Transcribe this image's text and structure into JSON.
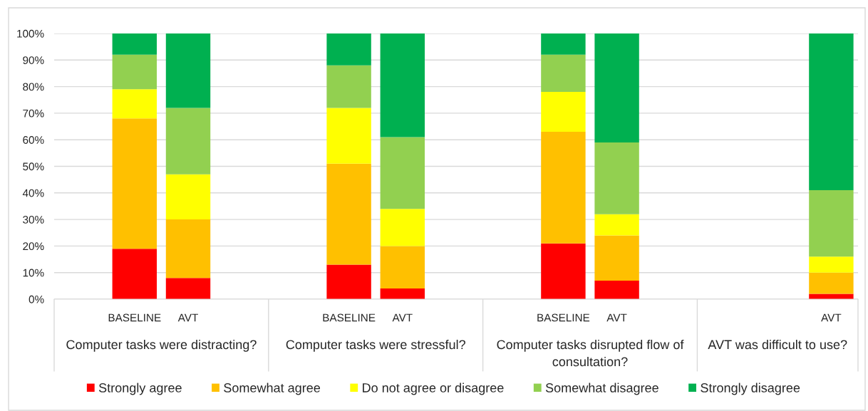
{
  "chart_data": {
    "type": "bar",
    "stacked": true,
    "categories": [
      null,
      "BASELINE",
      "AVT",
      null,
      null,
      "BASELINE",
      "AVT",
      null,
      null,
      "BASELINE",
      "AVT",
      null,
      null,
      null,
      "AVT"
    ],
    "series": [
      {
        "name": "Strongly agree",
        "color": "#ff0000",
        "values": [
          null,
          19,
          8,
          null,
          null,
          13,
          4,
          null,
          null,
          21,
          7,
          null,
          null,
          null,
          2
        ]
      },
      {
        "name": "Somewhat agree",
        "color": "#ffc000",
        "values": [
          null,
          49,
          22,
          null,
          null,
          38,
          16,
          null,
          null,
          42,
          17,
          null,
          null,
          null,
          8
        ]
      },
      {
        "name": "Do not agree or disagree",
        "color": "#ffff00",
        "values": [
          null,
          11,
          17,
          null,
          null,
          21,
          14,
          null,
          null,
          15,
          8,
          null,
          null,
          null,
          6
        ]
      },
      {
        "name": "Somewhat disagree",
        "color": "#92d050",
        "values": [
          null,
          13,
          25,
          null,
          null,
          16,
          27,
          null,
          null,
          14,
          27,
          null,
          null,
          null,
          25
        ]
      },
      {
        "name": "Strongly disagree",
        "color": "#00b050",
        "values": [
          null,
          8,
          28,
          null,
          null,
          12,
          39,
          null,
          null,
          8,
          41,
          null,
          null,
          null,
          59
        ]
      }
    ],
    "ylim": [
      0,
      100
    ],
    "yticks": [
      {
        "value": 0,
        "label": "0%"
      },
      {
        "value": 10,
        "label": "10%"
      },
      {
        "value": 20,
        "label": "20%"
      },
      {
        "value": 30,
        "label": "30%"
      },
      {
        "value": 40,
        "label": "40%"
      },
      {
        "value": 50,
        "label": "50%"
      },
      {
        "value": 60,
        "label": "60%"
      },
      {
        "value": 70,
        "label": "70%"
      },
      {
        "value": 80,
        "label": "80%"
      },
      {
        "value": 90,
        "label": "90%"
      },
      {
        "value": 100,
        "label": "100%"
      }
    ],
    "grid": "y",
    "legend": "bottom",
    "annotations": [
      "Computer tasks were distracting?",
      "Computer tasks were stressful?",
      "Computer tasks disrupted flow of consultation?",
      "AVT was difficult to use?"
    ]
  }
}
